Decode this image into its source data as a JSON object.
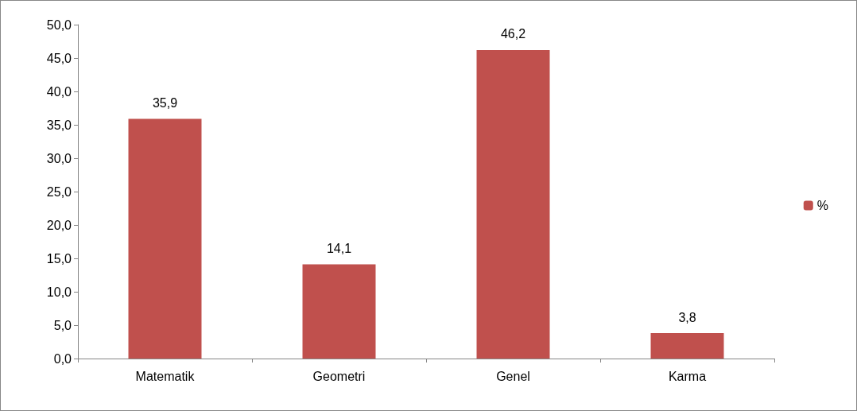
{
  "chart_data": {
    "type": "bar",
    "categories": [
      "Matematik",
      "Geometri",
      "Genel",
      "Karma"
    ],
    "series": [
      {
        "name": "%",
        "color": "#c0504d",
        "values": [
          35.9,
          14.1,
          46.2,
          3.8
        ],
        "value_labels": [
          "35,9",
          "14,1",
          "46,2",
          "3,8"
        ]
      }
    ],
    "ylim": [
      0,
      50
    ],
    "yticks": [
      {
        "value": 0,
        "label": "0,0"
      },
      {
        "value": 5,
        "label": "5,0"
      },
      {
        "value": 10,
        "label": "10,0"
      },
      {
        "value": 15,
        "label": "15,0"
      },
      {
        "value": 20,
        "label": "20,0"
      },
      {
        "value": 25,
        "label": "25,0"
      },
      {
        "value": 30,
        "label": "30,0"
      },
      {
        "value": 35,
        "label": "35,0"
      },
      {
        "value": 40,
        "label": "40,0"
      },
      {
        "value": 45,
        "label": "45,0"
      },
      {
        "value": 50,
        "label": "50,0"
      }
    ],
    "grid": false,
    "legend": "right"
  }
}
